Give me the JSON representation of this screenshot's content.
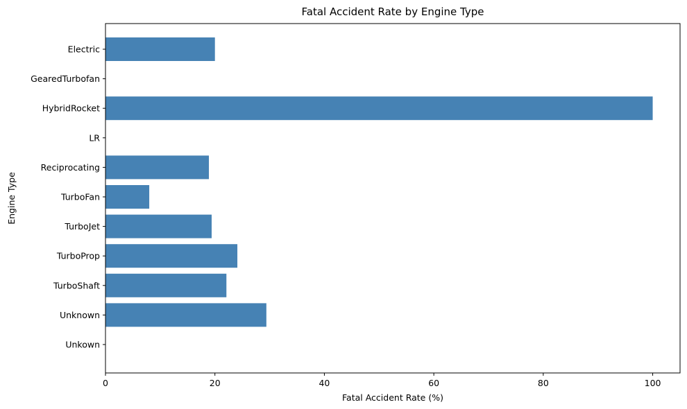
{
  "chart_data": {
    "type": "bar",
    "orientation": "horizontal",
    "title": "Fatal Accident Rate by Engine Type",
    "xlabel": "Fatal Accident Rate (%)",
    "ylabel": "Engine Type",
    "categories": [
      "Electric",
      "GearedTurbofan",
      "HybridRocket",
      "LR",
      "Reciprocating",
      "TurboFan",
      "TurboJet",
      "TurboProp",
      "TurboShaft",
      "Unknown",
      "Unkown"
    ],
    "values": [
      20.0,
      0,
      100.0,
      0,
      18.9,
      8.0,
      19.4,
      24.1,
      22.1,
      29.4,
      0
    ],
    "xlim": [
      0,
      105
    ],
    "xticks": [
      0,
      20,
      40,
      60,
      80,
      100
    ],
    "bar_color": "#4682b4",
    "grid": false,
    "legend": false
  }
}
